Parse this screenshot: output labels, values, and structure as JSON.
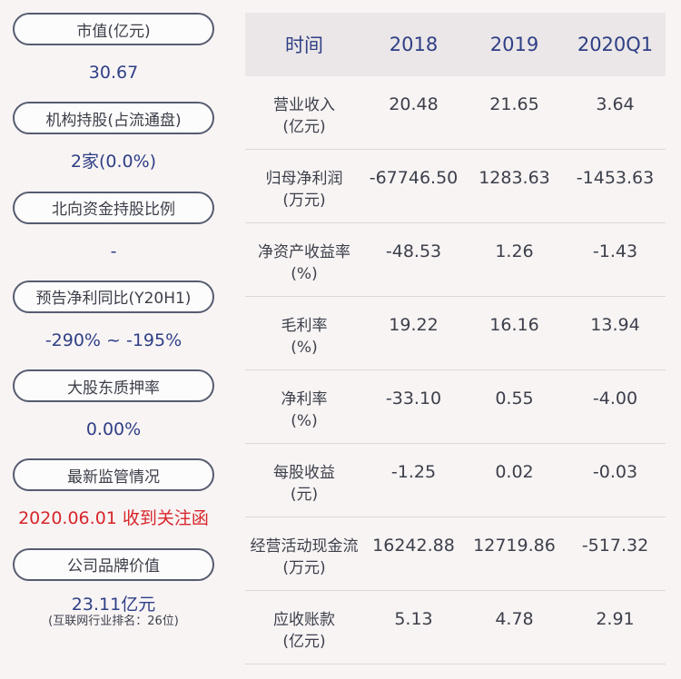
{
  "metrics": [
    {
      "label": "市值(亿元)",
      "value": "30.67"
    },
    {
      "label": "机构持股(占流通盘)",
      "value": "2家(0.0%)"
    },
    {
      "label": "北向资金持股比例",
      "value": "-"
    },
    {
      "label": "预告净利同比(Y20H1)",
      "value": "-290% ~ -195%"
    },
    {
      "label": "大股东质押率",
      "value": "0.00%"
    },
    {
      "label": "最新监管情况",
      "value": "2020.06.01 收到关注函"
    },
    {
      "label": "公司品牌价值",
      "value": "23.11亿元",
      "sub": "(互联网行业排名：26位)"
    }
  ],
  "colors": {
    "accent": "#2e3f86",
    "alert": "#d7262b",
    "pill_border": "#565c70"
  },
  "table": {
    "headers": [
      "时间",
      "2018",
      "2019",
      "2020Q1"
    ],
    "rows": [
      {
        "label": "营业收入",
        "unit": "(亿元)",
        "values": [
          "20.48",
          "21.65",
          "3.64"
        ]
      },
      {
        "label": "归母净利润",
        "unit": "(万元)",
        "values": [
          "-67746.50",
          "1283.63",
          "-1453.63"
        ]
      },
      {
        "label": "净资产收益率",
        "unit": "(%)",
        "values": [
          "-48.53",
          "1.26",
          "-1.43"
        ]
      },
      {
        "label": "毛利率",
        "unit": "(%)",
        "values": [
          "19.22",
          "16.16",
          "13.94"
        ]
      },
      {
        "label": "净利率",
        "unit": "(%)",
        "values": [
          "-33.10",
          "0.55",
          "-4.00"
        ]
      },
      {
        "label": "每股收益",
        "unit": "(元)",
        "values": [
          "-1.25",
          "0.02",
          "-0.03"
        ]
      },
      {
        "label": "经营活动现金流",
        "unit": "(万元)",
        "values": [
          "16242.88",
          "12719.86",
          "-517.32"
        ]
      },
      {
        "label": "应收账款",
        "unit": "(亿元)",
        "values": [
          "5.13",
          "4.78",
          "2.91"
        ]
      }
    ]
  }
}
